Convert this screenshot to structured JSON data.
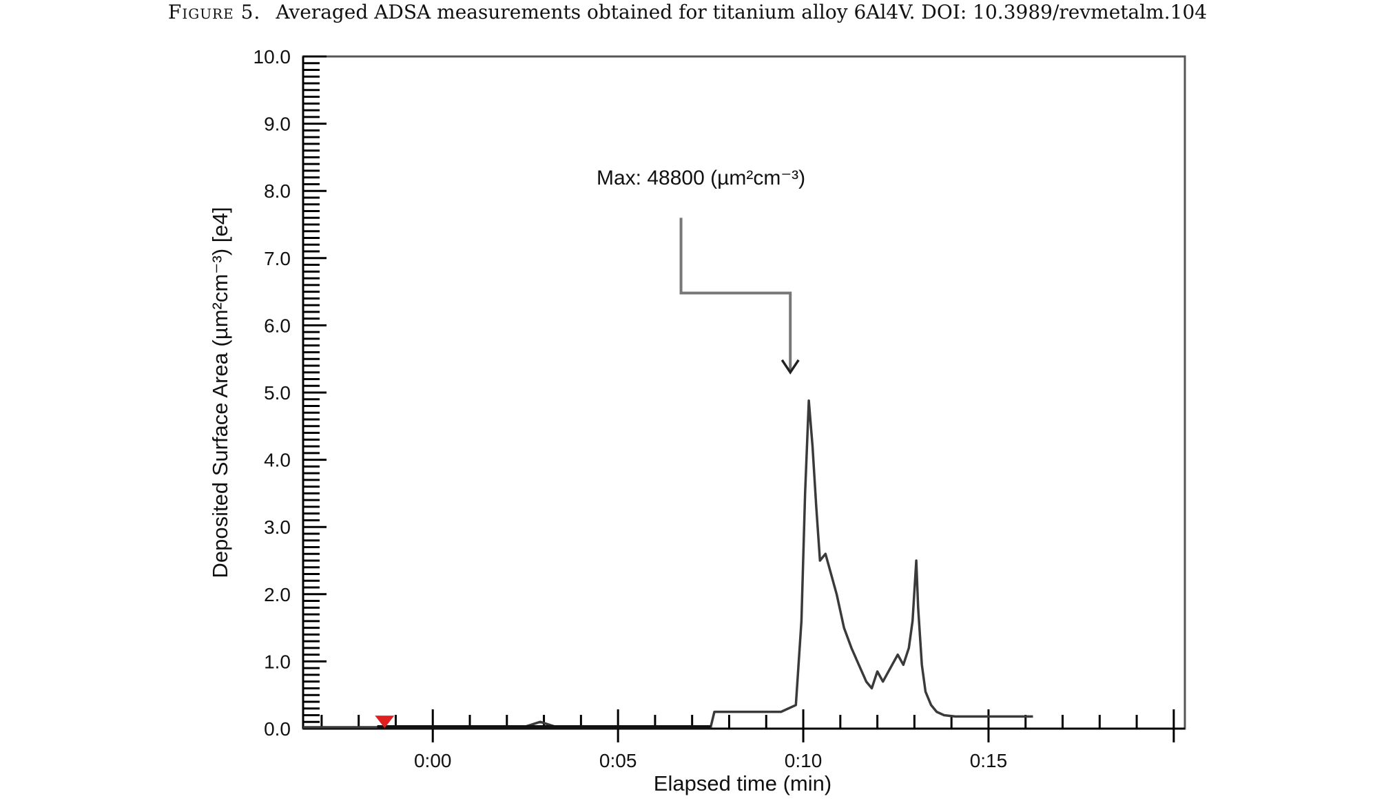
{
  "figure": {
    "label": "Figure 5.",
    "caption": "Averaged ADSA measurements obtained for titanium alloy 6Al4V. DOI: 10.3989/revmetalm.104"
  },
  "colors": {
    "line": "#3a3a3a",
    "axis": "#000000",
    "frame": "#555555",
    "marker": "#e02020",
    "callout": "#777777"
  },
  "chart_data": {
    "type": "line",
    "xlabel": "Elapsed time (min)",
    "ylabel": "Deposited Surface Area (µm²cm⁻³) [e4]",
    "x_unit": "minutes",
    "xlim": [
      -3.5,
      20.3
    ],
    "ylim": [
      0,
      10
    ],
    "x_ticks": [
      {
        "value": 0,
        "label": "0:00"
      },
      {
        "value": 5,
        "label": "0:05"
      },
      {
        "value": 10,
        "label": "0:10"
      },
      {
        "value": 15,
        "label": "0:15"
      }
    ],
    "y_ticks": [
      {
        "value": 0,
        "label": "0.0"
      },
      {
        "value": 1,
        "label": "1.0"
      },
      {
        "value": 2,
        "label": "2.0"
      },
      {
        "value": 3,
        "label": "3.0"
      },
      {
        "value": 4,
        "label": "4.0"
      },
      {
        "value": 5,
        "label": "5.0"
      },
      {
        "value": 6,
        "label": "6.0"
      },
      {
        "value": 7,
        "label": "7.0"
      },
      {
        "value": 8,
        "label": "8.0"
      },
      {
        "value": 9,
        "label": "9.0"
      },
      {
        "value": 10,
        "label": "10.0"
      }
    ],
    "grid": false,
    "annotation": {
      "text": "Max: 48800 (µm²cm⁻³)",
      "x": 10.1,
      "y": 4.88
    },
    "marker_point": {
      "x": -1.3,
      "y": 0.05
    },
    "series": [
      {
        "x": [
          -3.5,
          0,
          2.5,
          2.9,
          3.3,
          5,
          7.5,
          7.6,
          9.4,
          9.8,
          9.95,
          10.05,
          10.15,
          10.25,
          10.35,
          10.45,
          10.6,
          10.75,
          10.9,
          11.1,
          11.3,
          11.5,
          11.7,
          11.85,
          12.0,
          12.15,
          12.35,
          12.55,
          12.7,
          12.85,
          12.95,
          13.05,
          13.1,
          13.2,
          13.3,
          13.45,
          13.6,
          13.8,
          14.1,
          14.5,
          15,
          15.5,
          16.2
        ],
        "y": [
          0.02,
          0.02,
          0.03,
          0.1,
          0.03,
          0.02,
          0.02,
          0.25,
          0.25,
          0.35,
          1.6,
          3.5,
          4.88,
          4.2,
          3.3,
          2.5,
          2.6,
          2.3,
          2.0,
          1.5,
          1.2,
          0.95,
          0.7,
          0.6,
          0.85,
          0.7,
          0.9,
          1.1,
          0.95,
          1.2,
          1.6,
          2.5,
          1.8,
          0.95,
          0.55,
          0.35,
          0.25,
          0.2,
          0.18,
          0.18,
          0.18,
          0.18,
          0.18
        ]
      }
    ]
  }
}
